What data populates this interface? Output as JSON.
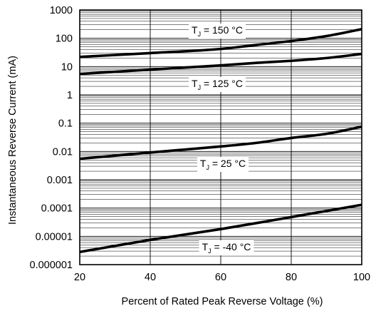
{
  "chart_data": {
    "type": "line",
    "title": "",
    "xlabel": "Percent of Rated Peak Reverse Voltage (%)",
    "ylabel": "Instantaneous Reverse Current (mA)",
    "xscale": "linear",
    "yscale": "log",
    "xlim": [
      20,
      100
    ],
    "ylim": [
      1e-06,
      1000
    ],
    "x_ticks": [
      20,
      40,
      60,
      80,
      100
    ],
    "x_tick_labels": [
      "20",
      "40",
      "60",
      "80",
      "100"
    ],
    "y_ticks": [
      1e-06,
      1e-05,
      0.0001,
      0.001,
      0.01,
      0.1,
      1,
      10,
      100,
      1000
    ],
    "y_tick_labels": [
      "0.000001",
      "0.00001",
      "0.0001",
      "0.001",
      "0.01",
      "0.1",
      "1",
      "10",
      "100",
      "1000"
    ],
    "grid": true,
    "legend": "none",
    "series": [
      {
        "name": "TJ = 150 °C",
        "label_main": "T",
        "label_sub": "J",
        "label_rest": " = 150 °C",
        "x": [
          20,
          40,
          60,
          70,
          80,
          90,
          100
        ],
        "y": [
          22,
          30,
          42,
          58,
          80,
          120,
          210
        ]
      },
      {
        "name": "TJ = 125 °C",
        "label_main": "T",
        "label_sub": "J",
        "label_rest": " = 125 °C",
        "x": [
          20,
          40,
          60,
          70,
          80,
          90,
          100
        ],
        "y": [
          5.5,
          7.8,
          11,
          13.5,
          16,
          20,
          28
        ]
      },
      {
        "name": "TJ = 25 °C",
        "label_main": "T",
        "label_sub": "J",
        "label_rest": " = 25 °C",
        "x": [
          20,
          40,
          60,
          70,
          80,
          90,
          100
        ],
        "y": [
          0.0055,
          0.0092,
          0.015,
          0.02,
          0.03,
          0.042,
          0.075
        ]
      },
      {
        "name": "TJ = -40 °C",
        "label_main": "T",
        "label_sub": "J",
        "label_rest": " = -40 °C",
        "x": [
          20,
          40,
          60,
          80,
          100
        ],
        "y": [
          2.8e-06,
          7.5e-06,
          1.8e-05,
          4.8e-05,
          0.00013
        ]
      }
    ],
    "colors": {
      "line": "#000000",
      "grid": "#000000",
      "background": "#ffffff"
    }
  }
}
